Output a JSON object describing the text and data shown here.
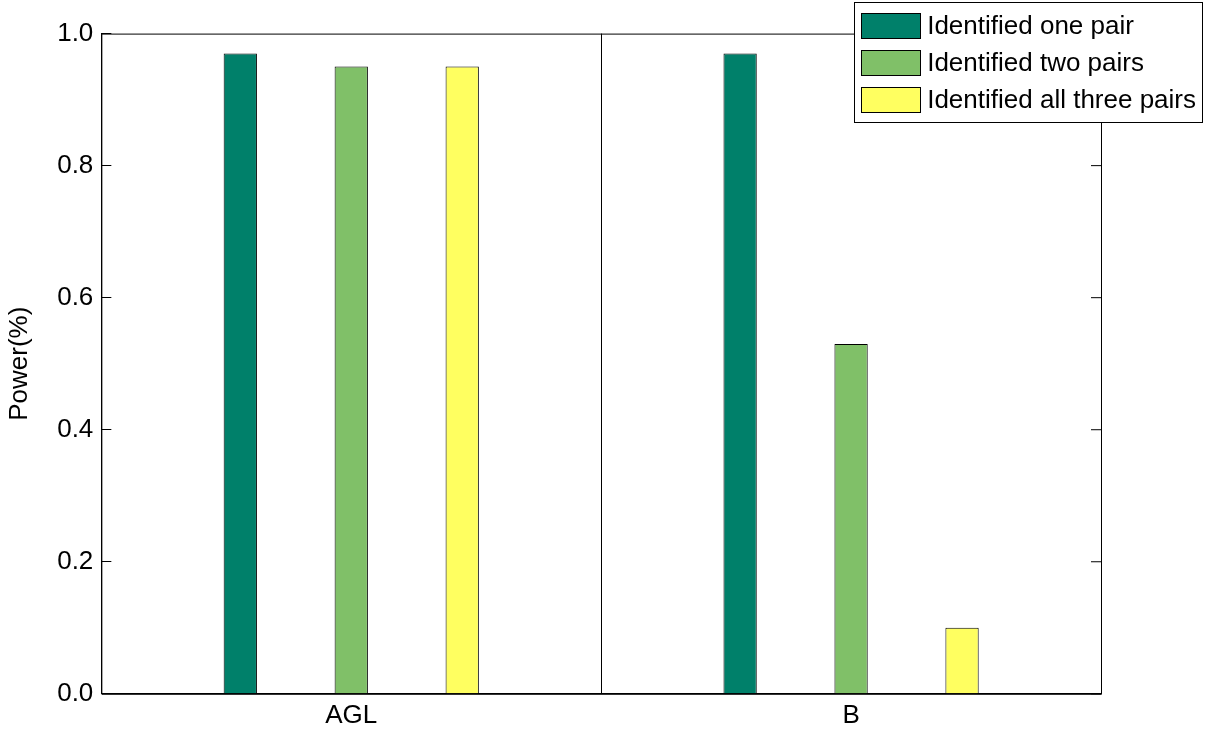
{
  "chart_data": {
    "type": "bar",
    "ylabel": "Power(%)",
    "categories": [
      "AGL",
      "B"
    ],
    "series": [
      {
        "name": "Identified one pair",
        "color": "#00806a",
        "values": [
          0.97,
          0.97
        ]
      },
      {
        "name": "Identified two pairs",
        "color": "#80c068",
        "values": [
          0.95,
          0.53
        ]
      },
      {
        "name": "Identified all three pairs",
        "color": "#ffff60",
        "values": [
          0.95,
          0.1
        ]
      }
    ],
    "ylim": [
      0,
      1
    ],
    "yticks": [
      {
        "value": 0,
        "label": "0.0"
      },
      0.2,
      0.4,
      0.6,
      0.8,
      {
        "value": 1,
        "label": "1.0"
      }
    ],
    "grid": "x",
    "legend": "top right"
  }
}
